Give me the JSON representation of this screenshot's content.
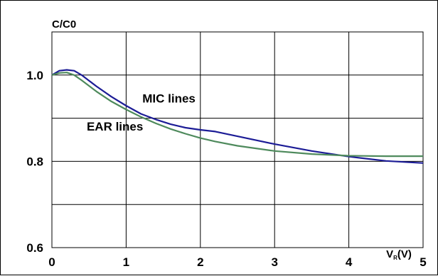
{
  "chart_data": {
    "type": "line",
    "ylabel": "C/C0",
    "xlabel": {
      "main": "V",
      "sub": "R",
      "suffix": "(V)"
    },
    "xlim": [
      0,
      5
    ],
    "ylim": [
      0.6,
      1.1
    ],
    "x_ticks": [
      0,
      1,
      2,
      3,
      4,
      5
    ],
    "x_tick_labels": [
      "0",
      "1",
      "2",
      "3",
      "4",
      "5"
    ],
    "y_ticks": [
      0.6,
      0.8,
      1.0
    ],
    "y_tick_labels": [
      "0.6",
      "0.8",
      "1.0"
    ],
    "y_gridlines": [
      0.6,
      0.7,
      0.8,
      0.9,
      1.0
    ],
    "grid": true,
    "legend": "none (inline labels)",
    "series": [
      {
        "name": "MIC lines",
        "color": "#1c1c96",
        "x": [
          0,
          0.1,
          0.2,
          0.3,
          0.4,
          0.6,
          0.8,
          1.0,
          1.2,
          1.4,
          1.6,
          1.8,
          2.0,
          2.2,
          2.5,
          3.0,
          3.5,
          4.0,
          4.5,
          5.0
        ],
        "y": [
          1.0,
          1.01,
          1.012,
          1.01,
          1.0,
          0.974,
          0.95,
          0.929,
          0.91,
          0.897,
          0.886,
          0.878,
          0.873,
          0.869,
          0.858,
          0.84,
          0.824,
          0.811,
          0.801,
          0.796
        ]
      },
      {
        "name": "EAR lines",
        "color": "#4e8a5c",
        "x": [
          0,
          0.1,
          0.2,
          0.3,
          0.4,
          0.6,
          0.8,
          1.0,
          1.2,
          1.4,
          1.6,
          1.8,
          2.0,
          2.2,
          2.5,
          3.0,
          3.5,
          4.0,
          4.5,
          5.0
        ],
        "y": [
          1.0,
          1.005,
          1.006,
          1.0,
          0.988,
          0.962,
          0.939,
          0.92,
          0.903,
          0.888,
          0.875,
          0.864,
          0.854,
          0.846,
          0.836,
          0.824,
          0.817,
          0.813,
          0.812,
          0.812
        ]
      }
    ],
    "annotations": [
      {
        "text": "MIC lines",
        "x": 1.2,
        "y": 0.93
      },
      {
        "text": "EAR lines",
        "x": 0.45,
        "y": 0.865
      }
    ]
  }
}
